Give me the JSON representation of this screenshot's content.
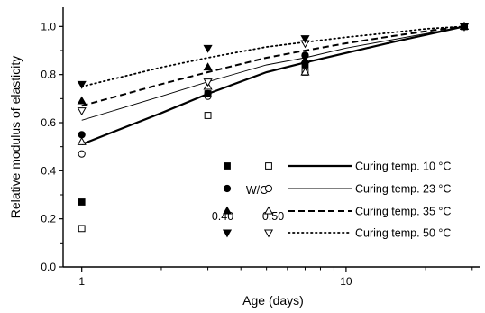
{
  "chart_data": {
    "type": "scatter",
    "xlabel": "Age (days)",
    "ylabel": "Relative modulus of elasticity",
    "xscale": "log",
    "xlim": [
      0.85,
      32
    ],
    "ylim": [
      0,
      1.08
    ],
    "x_ticks": [
      1,
      10
    ],
    "x_tick_labels": [
      "1",
      "10"
    ],
    "y_ticks": [
      0.0,
      0.2,
      0.4,
      0.6,
      0.8,
      1.0
    ],
    "y_tick_labels": [
      "0.0",
      "0.2",
      "0.4",
      "0.6",
      "0.8",
      "1.0"
    ],
    "grid": false,
    "legend_position": "center-right",
    "legend": {
      "header": "W/C",
      "wc_labels": [
        "0.40",
        "0.50"
      ]
    },
    "series": [
      {
        "curing_label": "Curing temp. 10 °C",
        "line_style": "solid-thick",
        "marker_040": "filled-square",
        "marker_050": "open-square",
        "wc040": {
          "x": [
            1,
            3,
            7,
            28
          ],
          "y": [
            0.27,
            0.72,
            0.84,
            1.0
          ]
        },
        "wc050": {
          "x": [
            1,
            3,
            7,
            28
          ],
          "y": [
            0.16,
            0.63,
            0.81,
            1.0
          ]
        },
        "fit": {
          "x": [
            1,
            2,
            3,
            5,
            7,
            10,
            15,
            20,
            28
          ],
          "y": [
            0.51,
            0.64,
            0.72,
            0.81,
            0.85,
            0.89,
            0.935,
            0.965,
            1.0
          ]
        }
      },
      {
        "curing_label": "Curing temp. 23 °C",
        "line_style": "solid-thin",
        "marker_040": "filled-circle",
        "marker_050": "open-circle",
        "wc040": {
          "x": [
            1,
            3,
            7,
            28
          ],
          "y": [
            0.55,
            0.72,
            0.88,
            1.0
          ]
        },
        "wc050": {
          "x": [
            1,
            3,
            7,
            28
          ],
          "y": [
            0.47,
            0.71,
            0.88,
            1.0
          ]
        },
        "fit": {
          "x": [
            1,
            2,
            3,
            5,
            7,
            10,
            15,
            20,
            28
          ],
          "y": [
            0.61,
            0.71,
            0.77,
            0.84,
            0.87,
            0.91,
            0.945,
            0.97,
            1.0
          ]
        }
      },
      {
        "curing_label": "Curing temp. 35 °C",
        "line_style": "dashed",
        "marker_040": "filled-triangle-up",
        "marker_050": "open-triangle-up",
        "wc040": {
          "x": [
            1,
            3,
            7,
            28
          ],
          "y": [
            0.69,
            0.83,
            0.86,
            1.0
          ]
        },
        "wc050": {
          "x": [
            1,
            3,
            7,
            28
          ],
          "y": [
            0.52,
            0.75,
            0.81,
            1.0
          ]
        },
        "fit": {
          "x": [
            1,
            2,
            3,
            5,
            7,
            10,
            15,
            20,
            28
          ],
          "y": [
            0.67,
            0.76,
            0.81,
            0.87,
            0.9,
            0.93,
            0.96,
            0.98,
            1.0
          ]
        }
      },
      {
        "curing_label": "Curing temp. 50 °C",
        "line_style": "dotted",
        "marker_040": "filled-triangle-down",
        "marker_050": "open-triangle-down",
        "wc040": {
          "x": [
            1,
            3,
            7,
            28
          ],
          "y": [
            0.76,
            0.91,
            0.95,
            1.0
          ]
        },
        "wc050": {
          "x": [
            1,
            3,
            7,
            28
          ],
          "y": [
            0.65,
            0.77,
            0.93,
            1.0
          ]
        },
        "fit": {
          "x": [
            1,
            2,
            3,
            5,
            7,
            10,
            15,
            20,
            28
          ],
          "y": [
            0.75,
            0.83,
            0.87,
            0.915,
            0.935,
            0.955,
            0.975,
            0.99,
            1.0
          ]
        }
      }
    ]
  }
}
